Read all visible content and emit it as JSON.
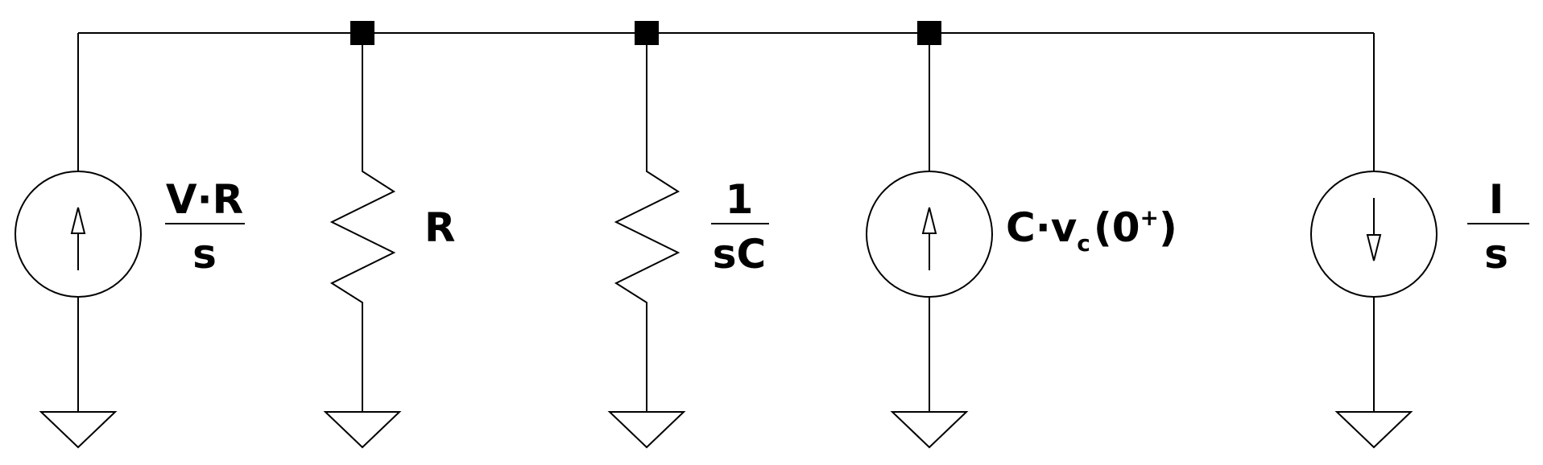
{
  "diagram": {
    "kind": "circuit-schematic",
    "components": [
      {
        "id": "source-1",
        "type": "current-source",
        "arrow": "up",
        "label": {
          "numerator": "V·R",
          "denominator": "s"
        }
      },
      {
        "id": "resistor-1",
        "type": "resistor",
        "label": {
          "text": "R"
        }
      },
      {
        "id": "impedance-1",
        "type": "resistor",
        "label": {
          "numerator": "1",
          "denominator": "sC"
        }
      },
      {
        "id": "source-2",
        "type": "current-source",
        "arrow": "up",
        "label": {
          "base": "C·v",
          "sub": "c",
          "open": "(0",
          "sup": "+",
          "close": ")"
        }
      },
      {
        "id": "source-3",
        "type": "current-source",
        "arrow": "down",
        "label": {
          "numerator": "I",
          "denominator": "s"
        }
      }
    ],
    "junctions": 3,
    "grounds": 5
  }
}
